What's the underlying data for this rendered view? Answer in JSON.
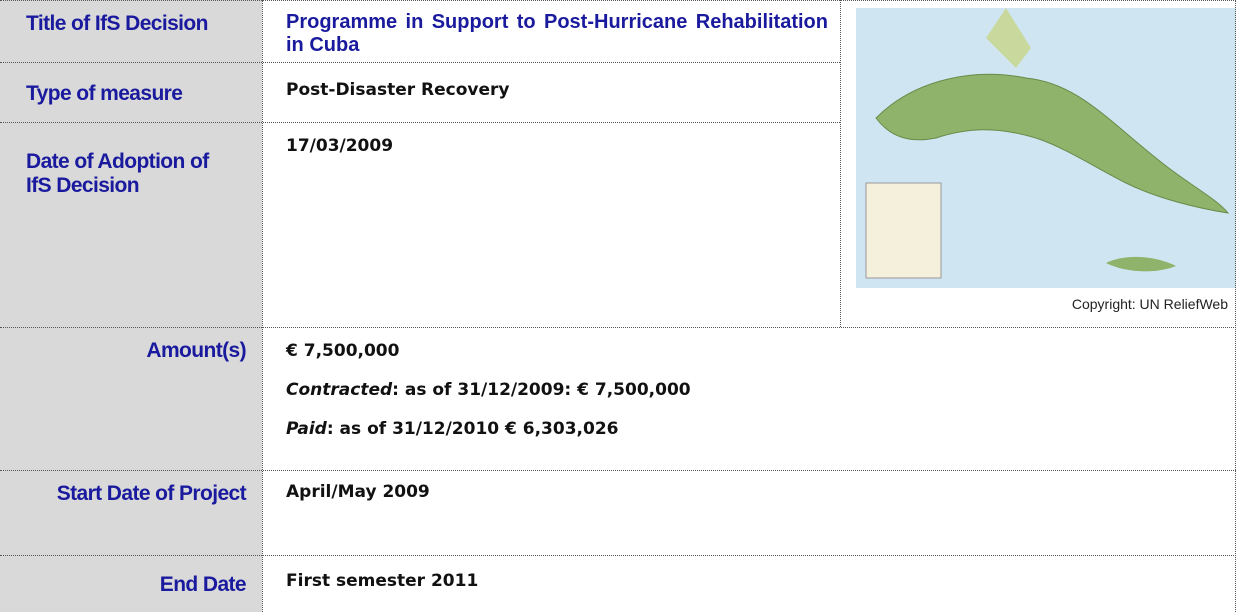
{
  "table": {
    "rows": [
      {
        "label": "Title of IfS Decision",
        "value": "Programme in Support to Post-Hurricane Rehabilitation in Cuba"
      },
      {
        "label": "Type of measure",
        "value": "Post-Disaster Recovery"
      },
      {
        "label": "Date of Adoption of IfS Decision",
        "value": "17/03/2009"
      },
      {
        "label": "Amount(s)",
        "lines": [
          {
            "text": "€ 7,500,000"
          },
          {
            "italic": "Contracted",
            "text": ": as of 31/12/2009: € 7,500,000"
          },
          {
            "italic": "Paid",
            "text": ": as of 31/12/2010 € 6,303,026"
          }
        ]
      },
      {
        "label": "Start Date of Project",
        "value": "April/May 2009"
      },
      {
        "label": "End Date",
        "value": "First semester 2011"
      }
    ]
  },
  "image": {
    "caption": "Copyright: UN ReliefWeb"
  }
}
